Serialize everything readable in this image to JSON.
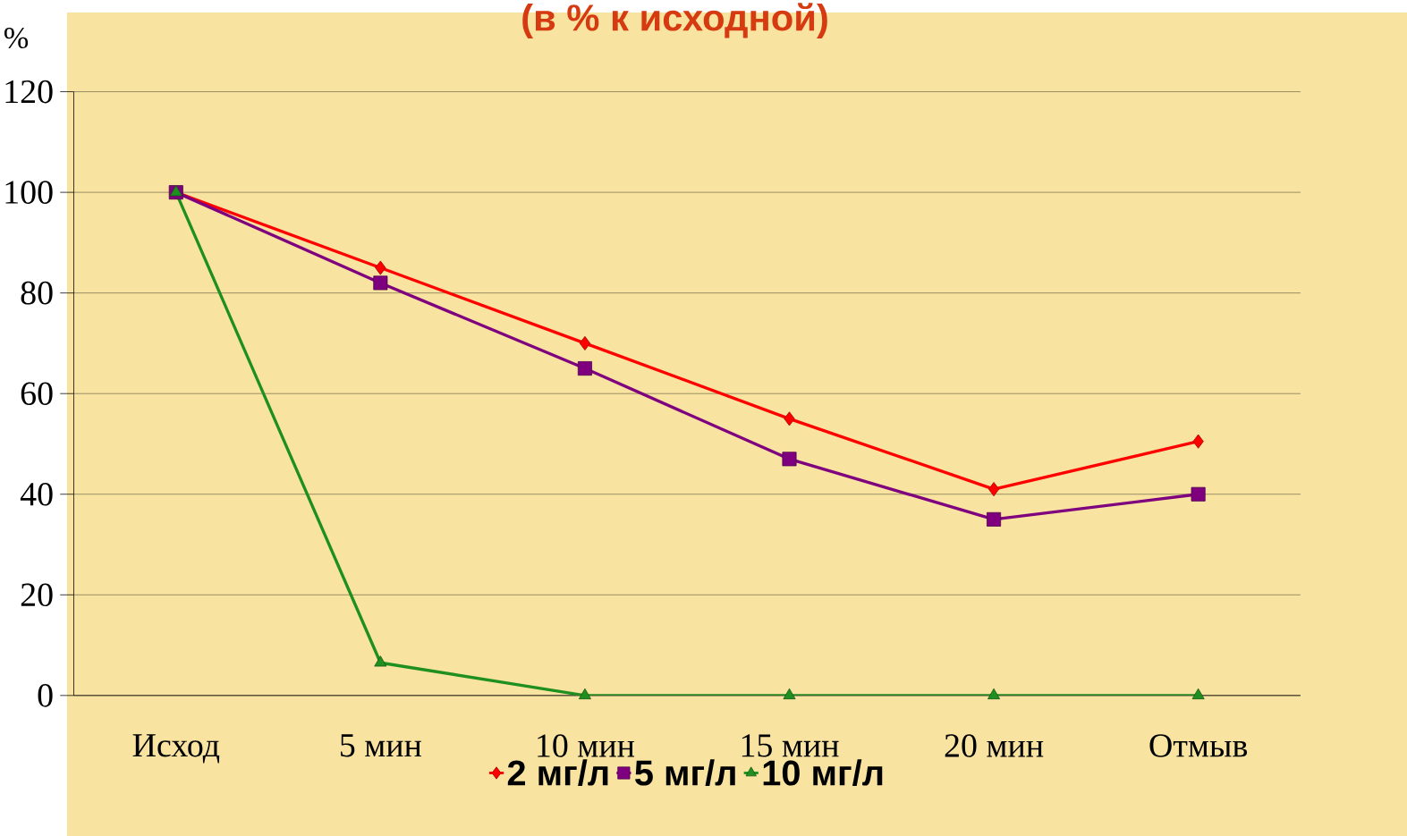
{
  "chart_data": {
    "type": "line",
    "title": "(в % к исходной)",
    "ylabel": "%",
    "categories": [
      "Исход",
      "5 мин",
      "10 мин",
      "15 мин",
      "20 мин",
      "Отмыв"
    ],
    "series": [
      {
        "name": "2 мг/л",
        "color": "#ff0000",
        "marker": "diamond",
        "values": [
          100,
          85,
          70,
          55,
          41,
          50.5
        ]
      },
      {
        "name": "5 мг/л",
        "color": "#7f007f",
        "marker": "square",
        "values": [
          100,
          82,
          65,
          47,
          35,
          40
        ]
      },
      {
        "name": "10 мг/л",
        "color": "#1f8f1f",
        "marker": "triangle",
        "values": [
          100,
          6.5,
          0,
          0,
          0,
          0
        ]
      }
    ],
    "ylim": [
      0,
      120
    ],
    "yticks": [
      0,
      20,
      40,
      60,
      80,
      100,
      120
    ],
    "grid": "y",
    "legend": "bottom",
    "line_style": "solid"
  }
}
